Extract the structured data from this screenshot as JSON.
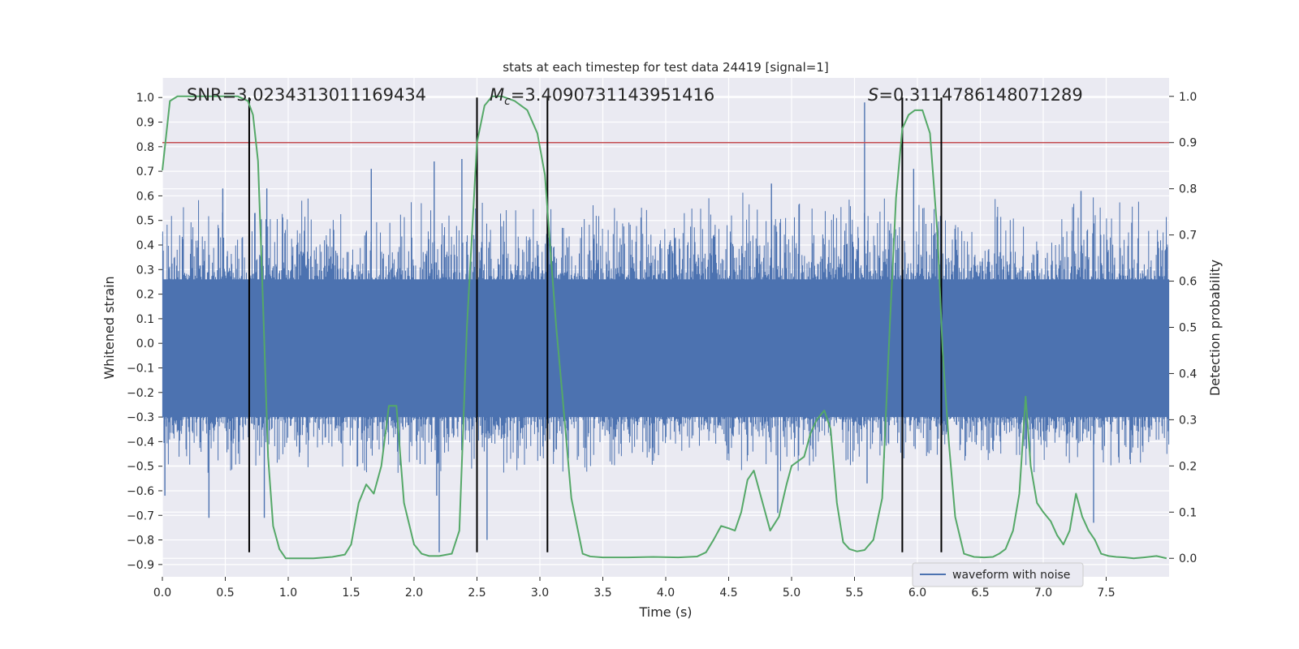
{
  "chart_data": {
    "type": "line",
    "title": "stats at each timestep for test data 24419 [signal=1]",
    "xlabel": "Time (s)",
    "ylabel_left": "Whitened strain",
    "ylabel_right": "Detection probability",
    "xlim": [
      0,
      8
    ],
    "ylim_left": [
      -0.95,
      1.08
    ],
    "ylim_right": [
      -0.04,
      1.04
    ],
    "x_ticks": [
      0.0,
      0.5,
      1.0,
      1.5,
      2.0,
      2.5,
      3.0,
      3.5,
      4.0,
      4.5,
      5.0,
      5.5,
      6.0,
      6.5,
      7.0,
      7.5
    ],
    "x_tick_labels": [
      "0.0",
      "0.5",
      "1.0",
      "1.5",
      "2.0",
      "2.5",
      "3.0",
      "3.5",
      "4.0",
      "4.5",
      "5.0",
      "5.5",
      "6.0",
      "6.5",
      "7.0",
      "7.5"
    ],
    "y_left_ticks": [
      1.0,
      0.9,
      0.8,
      0.7,
      0.6,
      0.5,
      0.4,
      0.3,
      0.2,
      0.1,
      0.0,
      -0.1,
      -0.2,
      -0.3,
      -0.4,
      -0.5,
      -0.6,
      -0.7,
      -0.8,
      -0.9
    ],
    "y_left_tick_labels": [
      "1.0",
      "0.9",
      "0.8",
      "0.7",
      "0.6",
      "0.5",
      "0.4",
      "0.3",
      "0.2",
      "0.1",
      "0.0",
      "−0.1",
      "−0.2",
      "−0.3",
      "−0.4",
      "−0.5",
      "−0.6",
      "−0.7",
      "−0.8",
      "−0.9"
    ],
    "y_right_ticks": [
      1.0,
      0.9,
      0.8,
      0.7,
      0.6,
      0.5,
      0.4,
      0.3,
      0.2,
      0.1,
      0.0
    ],
    "y_right_tick_labels": [
      "1.0",
      "0.9",
      "0.8",
      "0.7",
      "0.6",
      "0.5",
      "0.4",
      "0.3",
      "0.2",
      "0.1",
      "0.0"
    ],
    "grid": true,
    "annotations": {
      "snr": "SNR=3.0234313011169434",
      "mc_symbol": "M",
      "mc_subscript": "c",
      "mc_value": "=3.4090731143951416",
      "s_symbol": "S",
      "s_value": "=0.3114786148071289"
    },
    "legend": {
      "label": "waveform with noise",
      "placement": "lower-right"
    },
    "threshold": {
      "value": 0.9,
      "axis": "right",
      "color": "#c44e52"
    },
    "vertical_markers": [
      0.69,
      2.5,
      3.06,
      5.88,
      6.19
    ],
    "vertical_marker_range": [
      -0.85,
      1.0
    ],
    "waveform": {
      "name": "waveform with noise",
      "color": "#4c72b0",
      "n_samples": 1600,
      "core_band": [
        -0.3,
        0.26
      ],
      "spike_up_range": [
        0.26,
        0.63
      ],
      "spike_down_range": [
        -0.55,
        -0.3
      ],
      "highlights": [
        {
          "x": 5.58,
          "y": 0.98
        },
        {
          "x": 5.6,
          "y": -0.57
        },
        {
          "x": 2.2,
          "y": -0.85
        },
        {
          "x": 2.18,
          "y": -0.62
        },
        {
          "x": 6.19,
          "y": -0.74
        },
        {
          "x": 0.37,
          "y": -0.71
        },
        {
          "x": 0.81,
          "y": -0.71
        },
        {
          "x": 0.02,
          "y": -0.62
        },
        {
          "x": 2.58,
          "y": -0.8
        },
        {
          "x": 2.38,
          "y": 0.75
        },
        {
          "x": 2.16,
          "y": 0.74
        },
        {
          "x": 0.83,
          "y": 0.63
        },
        {
          "x": 1.66,
          "y": 0.71
        },
        {
          "x": 4.84,
          "y": 0.65
        },
        {
          "x": 4.89,
          "y": -0.69
        },
        {
          "x": 5.97,
          "y": 0.71
        },
        {
          "x": 0.48,
          "y": 0.63
        },
        {
          "x": 7.3,
          "y": 0.62
        },
        {
          "x": 7.4,
          "y": -0.73
        }
      ]
    },
    "probability": {
      "name": "detection probability",
      "color": "#55a868",
      "x": [
        0.0,
        0.06,
        0.12,
        0.2,
        0.3,
        0.4,
        0.5,
        0.6,
        0.68,
        0.72,
        0.76,
        0.8,
        0.84,
        0.88,
        0.93,
        0.98,
        1.05,
        1.2,
        1.35,
        1.45,
        1.5,
        1.56,
        1.62,
        1.68,
        1.74,
        1.8,
        1.86,
        1.92,
        2.0,
        2.06,
        2.12,
        2.2,
        2.3,
        2.36,
        2.42,
        2.5,
        2.56,
        2.62,
        2.7,
        2.8,
        2.9,
        2.98,
        3.04,
        3.08,
        3.13,
        3.18,
        3.25,
        3.34,
        3.4,
        3.5,
        3.7,
        3.9,
        4.1,
        4.25,
        4.32,
        4.38,
        4.44,
        4.5,
        4.55,
        4.6,
        4.65,
        4.7,
        4.77,
        4.83,
        4.9,
        4.96,
        5.0,
        5.05,
        5.1,
        5.15,
        5.2,
        5.26,
        5.31,
        5.36,
        5.41,
        5.46,
        5.52,
        5.58,
        5.65,
        5.72,
        5.78,
        5.83,
        5.88,
        5.93,
        5.98,
        6.04,
        6.1,
        6.16,
        6.2,
        6.25,
        6.3,
        6.37,
        6.45,
        6.53,
        6.6,
        6.65,
        6.7,
        6.76,
        6.81,
        6.86,
        6.9,
        6.95,
        7.0,
        7.06,
        7.11,
        7.16,
        7.21,
        7.26,
        7.31,
        7.36,
        7.41,
        7.46,
        7.52,
        7.58,
        7.65,
        7.72,
        7.8,
        7.9,
        7.98
      ],
      "y": [
        0.84,
        0.99,
        1.0,
        1.0,
        1.0,
        1.0,
        1.0,
        1.0,
        0.99,
        0.96,
        0.86,
        0.55,
        0.22,
        0.07,
        0.02,
        0.0,
        0.0,
        0.0,
        0.003,
        0.008,
        0.03,
        0.12,
        0.16,
        0.14,
        0.2,
        0.33,
        0.33,
        0.12,
        0.03,
        0.01,
        0.005,
        0.005,
        0.01,
        0.06,
        0.5,
        0.9,
        0.98,
        1.0,
        1.0,
        0.99,
        0.97,
        0.92,
        0.83,
        0.68,
        0.5,
        0.35,
        0.13,
        0.01,
        0.004,
        0.002,
        0.002,
        0.003,
        0.002,
        0.004,
        0.013,
        0.04,
        0.07,
        0.065,
        0.06,
        0.1,
        0.17,
        0.19,
        0.12,
        0.06,
        0.09,
        0.16,
        0.2,
        0.21,
        0.22,
        0.27,
        0.3,
        0.32,
        0.28,
        0.12,
        0.035,
        0.02,
        0.015,
        0.018,
        0.04,
        0.13,
        0.5,
        0.78,
        0.93,
        0.96,
        0.97,
        0.97,
        0.92,
        0.7,
        0.45,
        0.25,
        0.09,
        0.01,
        0.003,
        0.002,
        0.003,
        0.01,
        0.02,
        0.06,
        0.14,
        0.35,
        0.2,
        0.12,
        0.1,
        0.08,
        0.05,
        0.03,
        0.06,
        0.14,
        0.09,
        0.06,
        0.04,
        0.01,
        0.005,
        0.003,
        0.002,
        0.0,
        0.002,
        0.005,
        0.0
      ]
    }
  }
}
